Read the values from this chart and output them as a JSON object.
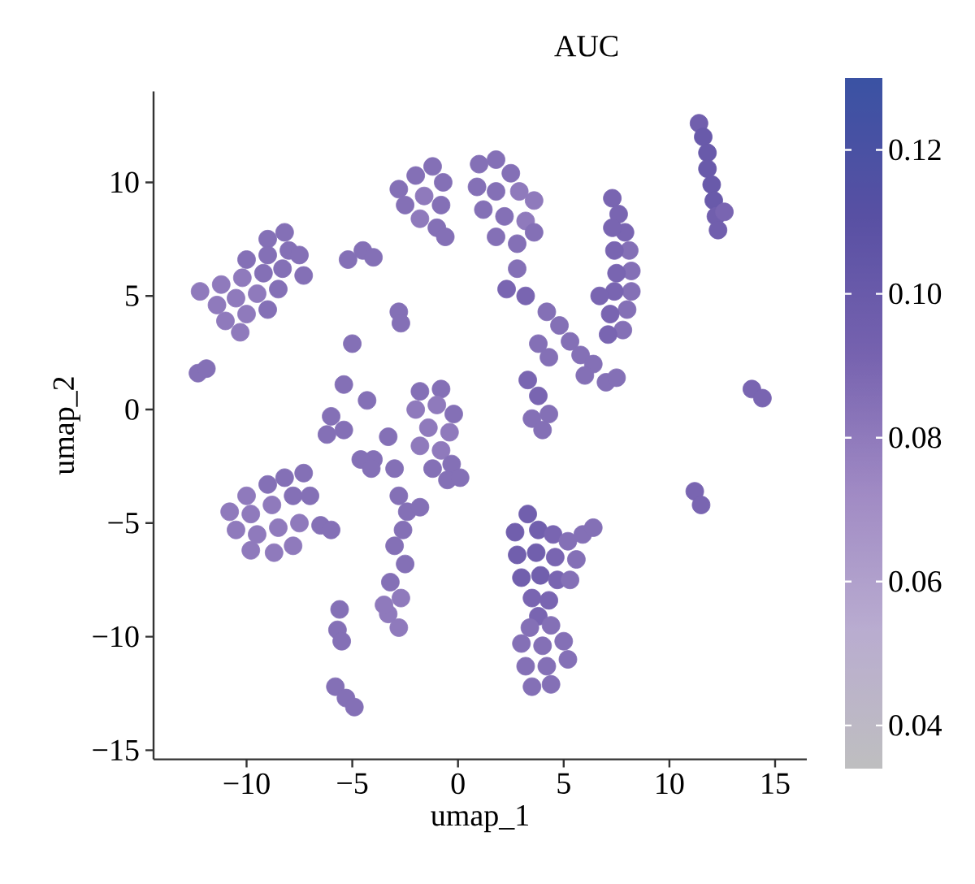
{
  "chart_data": {
    "type": "scatter",
    "title": "AUC",
    "xlabel": "umap_1",
    "ylabel": "umap_2",
    "xlim": [
      -14.4,
      16.5
    ],
    "ylim": [
      -15.4,
      14.0
    ],
    "xticks": [
      {
        "value": -10,
        "label": "−10"
      },
      {
        "value": -5,
        "label": "−5"
      },
      0,
      5,
      10,
      15
    ],
    "yticks": [
      {
        "value": -15,
        "label": "−15"
      },
      {
        "value": -10,
        "label": "−10"
      },
      {
        "value": -5,
        "label": "−5"
      },
      0,
      5,
      10
    ],
    "clim": [
      0.034,
      0.13
    ],
    "cticks": [
      0.04,
      0.06,
      0.08,
      {
        "value": 0.1,
        "label": "0.10"
      },
      0.12
    ],
    "marker": "circle",
    "x": [
      -8.2,
      -9.0,
      -8.0,
      -9.0,
      -10.0,
      -8.3,
      -9.2,
      -10.2,
      -11.2,
      -12.2,
      -8.5,
      -9.5,
      -10.5,
      -11.4,
      -9.0,
      -10.0,
      -11.0,
      -10.3,
      -7.5,
      -7.3,
      -5.2,
      -4.5,
      -4.0,
      -5.0,
      -12.3,
      -11.9,
      -2.8,
      -2.7,
      -5.4,
      -4.3,
      -2.8,
      -2.0,
      -1.2,
      -0.7,
      -1.6,
      -2.5,
      -0.8,
      -1.8,
      -1.0,
      -0.6,
      1.0,
      1.8,
      2.5,
      0.9,
      1.8,
      2.9,
      3.6,
      1.2,
      2.2,
      3.2,
      1.8,
      2.8,
      3.6,
      2.8,
      2.3,
      3.2,
      4.2,
      4.8,
      5.3,
      5.8,
      6.4,
      6.0,
      7.0,
      7.5,
      7.3,
      7.6,
      7.9,
      7.3,
      8.1,
      7.4,
      8.2,
      7.5,
      8.2,
      7.4,
      6.7,
      8.0,
      7.2,
      7.8,
      7.1,
      11.4,
      11.6,
      11.8,
      11.8,
      12.0,
      12.1,
      12.2,
      12.3,
      12.6,
      13.9,
      14.4,
      3.8,
      4.3,
      3.3,
      3.8,
      4.3,
      3.5,
      4.0,
      -1.8,
      -0.8,
      -1.0,
      -2.0,
      -0.2,
      -1.4,
      -0.4,
      -1.8,
      -0.8,
      -1.2,
      -0.3,
      -0.5,
      0.1,
      -2.8,
      -2.4,
      -2.6,
      -3.0,
      -2.5,
      -3.2,
      -2.7,
      -3.3,
      -2.8,
      -3.5,
      -3.3,
      -4.0,
      -3.0,
      -1.8,
      -6.0,
      -5.4,
      -6.2,
      -4.6,
      -4.1,
      -7.3,
      -8.2,
      -9.0,
      -10.0,
      -10.8,
      -9.8,
      -8.8,
      -7.8,
      -7.0,
      -10.5,
      -9.5,
      -8.5,
      -7.5,
      -6.5,
      -6.0,
      -9.8,
      -8.7,
      -7.8,
      -5.6,
      -5.7,
      -5.5,
      -5.8,
      -5.3,
      -4.9,
      3.3,
      2.7,
      3.8,
      4.5,
      2.8,
      3.7,
      4.6,
      3.0,
      3.9,
      4.7,
      3.5,
      4.3,
      3.8,
      5.2,
      5.9,
      6.4,
      5.6,
      5.3,
      3.4,
      4.4,
      3.0,
      4.0,
      5.0,
      3.2,
      4.2,
      5.2,
      3.5,
      4.4,
      11.2,
      11.5
    ],
    "values": [
      7.8,
      7.5,
      7.0,
      6.8,
      6.6,
      6.2,
      6.0,
      5.8,
      5.5,
      5.2,
      5.3,
      5.1,
      4.9,
      4.6,
      4.4,
      4.2,
      3.9,
      3.4,
      6.8,
      5.9,
      6.6,
      7.0,
      6.7,
      2.9,
      1.6,
      1.8,
      4.3,
      3.8,
      1.1,
      0.4,
      9.7,
      10.3,
      10.7,
      10.0,
      9.4,
      9.0,
      9.0,
      8.4,
      8.0,
      7.6,
      10.8,
      11.0,
      10.4,
      9.8,
      9.6,
      9.6,
      9.2,
      8.8,
      8.5,
      8.3,
      7.6,
      7.3,
      7.8,
      6.2,
      5.3,
      5.0,
      4.3,
      3.7,
      3.0,
      2.4,
      2.0,
      1.5,
      1.2,
      1.4,
      9.3,
      8.6,
      7.8,
      8.0,
      7.0,
      7.0,
      6.1,
      6.0,
      5.2,
      5.2,
      5.0,
      4.4,
      4.2,
      3.5,
      3.3,
      12.6,
      12.0,
      11.3,
      10.6,
      9.9,
      9.2,
      8.5,
      7.9,
      8.7,
      0.9,
      0.5,
      2.9,
      2.3,
      1.3,
      0.6,
      -0.2,
      -0.4,
      -0.9,
      0.8,
      0.9,
      0.2,
      0.0,
      -0.2,
      -0.8,
      -1.0,
      -1.6,
      -1.8,
      -2.6,
      -2.4,
      -3.1,
      -3.0,
      -3.8,
      -4.5,
      -5.3,
      -6.0,
      -6.8,
      -7.6,
      -8.3,
      -9.0,
      -9.6,
      -8.6,
      -1.2,
      -2.2,
      -2.6,
      -4.3,
      -0.3,
      -0.9,
      -1.1,
      -2.2,
      -2.6,
      -2.8,
      -3.0,
      -3.3,
      -3.8,
      -4.5,
      -4.6,
      -4.2,
      -3.8,
      -3.8,
      -5.3,
      -5.5,
      -5.2,
      -5.0,
      -5.1,
      -5.3,
      -6.2,
      -6.3,
      -6.0,
      -8.8,
      -9.7,
      -10.2,
      -12.2,
      -12.7,
      -13.1,
      -4.6,
      -5.4,
      -5.3,
      -5.5,
      -6.4,
      -6.3,
      -6.5,
      -7.4,
      -7.3,
      -7.5,
      -8.3,
      -8.4,
      -9.1,
      -5.8,
      -5.5,
      -5.2,
      -6.6,
      -7.5,
      -9.6,
      -9.5,
      -10.3,
      -10.4,
      -10.2,
      -11.3,
      -11.3,
      -11.0,
      -12.2,
      -12.1,
      -3.6,
      -4.2
    ],
    "cvalues": [
      0.085,
      0.085,
      0.085,
      0.085,
      0.085,
      0.085,
      0.085,
      0.08,
      0.08,
      0.08,
      0.085,
      0.08,
      0.08,
      0.08,
      0.085,
      0.08,
      0.08,
      0.08,
      0.085,
      0.085,
      0.085,
      0.085,
      0.085,
      0.085,
      0.085,
      0.085,
      0.085,
      0.085,
      0.085,
      0.085,
      0.085,
      0.085,
      0.085,
      0.085,
      0.08,
      0.085,
      0.085,
      0.08,
      0.085,
      0.085,
      0.085,
      0.085,
      0.085,
      0.085,
      0.085,
      0.08,
      0.08,
      0.085,
      0.085,
      0.08,
      0.085,
      0.085,
      0.085,
      0.085,
      0.09,
      0.09,
      0.085,
      0.085,
      0.085,
      0.085,
      0.085,
      0.085,
      0.085,
      0.085,
      0.09,
      0.09,
      0.09,
      0.09,
      0.085,
      0.09,
      0.085,
      0.09,
      0.085,
      0.09,
      0.09,
      0.085,
      0.09,
      0.085,
      0.09,
      0.095,
      0.1,
      0.1,
      0.1,
      0.1,
      0.1,
      0.095,
      0.095,
      0.09,
      0.09,
      0.09,
      0.085,
      0.085,
      0.09,
      0.09,
      0.085,
      0.085,
      0.085,
      0.085,
      0.085,
      0.08,
      0.08,
      0.085,
      0.08,
      0.08,
      0.08,
      0.08,
      0.085,
      0.085,
      0.085,
      0.085,
      0.085,
      0.085,
      0.085,
      0.085,
      0.085,
      0.085,
      0.08,
      0.08,
      0.08,
      0.08,
      0.085,
      0.085,
      0.085,
      0.085,
      0.085,
      0.085,
      0.085,
      0.085,
      0.085,
      0.085,
      0.085,
      0.085,
      0.08,
      0.08,
      0.08,
      0.08,
      0.085,
      0.085,
      0.08,
      0.08,
      0.08,
      0.08,
      0.085,
      0.085,
      0.08,
      0.08,
      0.08,
      0.085,
      0.085,
      0.085,
      0.085,
      0.085,
      0.085,
      0.095,
      0.095,
      0.095,
      0.09,
      0.095,
      0.095,
      0.09,
      0.095,
      0.095,
      0.09,
      0.09,
      0.09,
      0.09,
      0.085,
      0.085,
      0.085,
      0.085,
      0.085,
      0.085,
      0.085,
      0.085,
      0.085,
      0.085,
      0.085,
      0.085,
      0.085,
      0.085,
      0.085,
      0.09,
      0.09
    ]
  }
}
